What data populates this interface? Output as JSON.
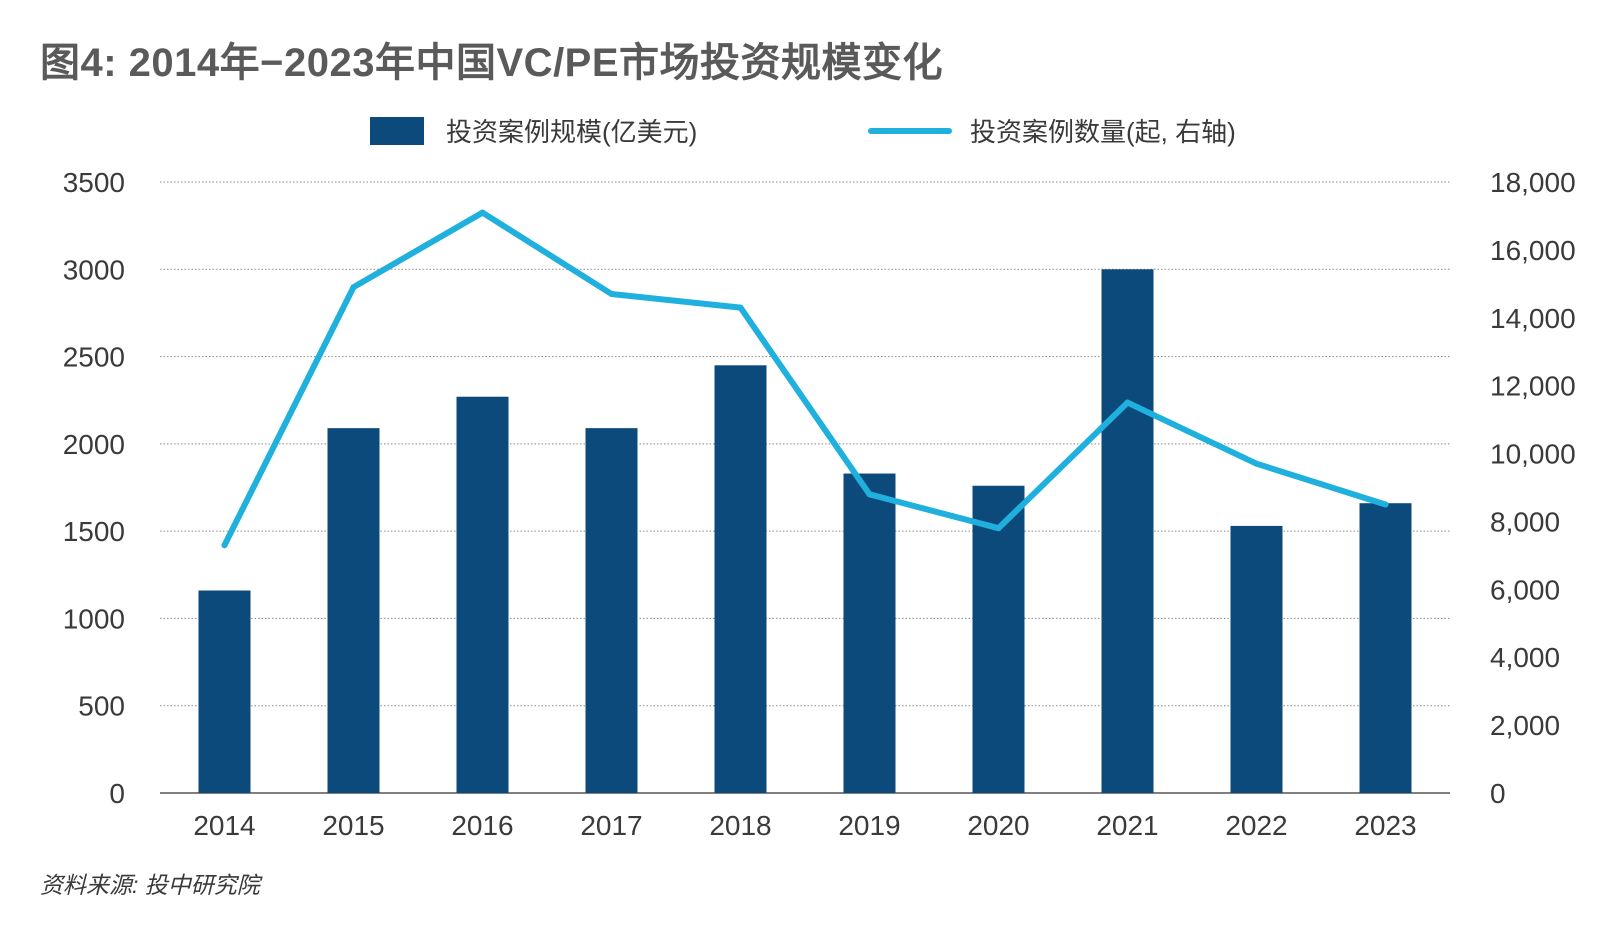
{
  "title": "图4: 2014年−2023年中国VC/PE市场投资规模变化",
  "source": "资料来源: 投中研究院",
  "colors": {
    "bar": "#0c4a7b",
    "line": "#1fb0de",
    "grid": "#8a8a8a",
    "axis": "#555555"
  },
  "chart_data": {
    "type": "bar",
    "title": "图4: 2014年−2023年中国VC/PE市场投资规模变化",
    "categories": [
      "2014",
      "2015",
      "2016",
      "2017",
      "2018",
      "2019",
      "2020",
      "2021",
      "2022",
      "2023"
    ],
    "series": [
      {
        "name": "投资案例规模(亿美元)",
        "type": "bar",
        "axis": "left",
        "values": [
          1160,
          2090,
          2270,
          2090,
          2450,
          1830,
          1760,
          3000,
          1530,
          1660
        ]
      },
      {
        "name": "投资案例数量(起, 右轴)",
        "type": "line",
        "axis": "right",
        "values": [
          7300,
          14900,
          17100,
          14700,
          14300,
          8800,
          7800,
          11500,
          9700,
          8500
        ]
      }
    ],
    "ylim_left": [
      0,
      3500
    ],
    "ylim_right": [
      0,
      18000
    ],
    "yticks_left": [
      "0",
      "500",
      "1000",
      "1500",
      "2000",
      "2500",
      "3000",
      "3500"
    ],
    "yticks_right": [
      "0",
      "2,000",
      "4,000",
      "6,000",
      "8,000",
      "10,000",
      "12,000",
      "14,000",
      "16,000",
      "18,000"
    ],
    "grid": true,
    "legend_position": "top"
  }
}
